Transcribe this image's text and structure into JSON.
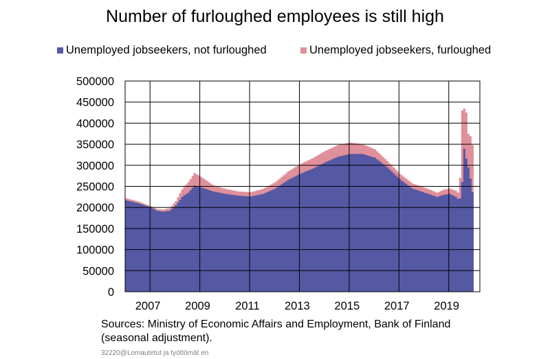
{
  "chart_data": {
    "type": "area",
    "stacked": true,
    "title": "Number of furloughed employees is still high",
    "xlabel": "",
    "ylabel": "",
    "ylim": [
      0,
      500000
    ],
    "yticks": [
      "500000",
      "450000",
      "400000",
      "350000",
      "300000",
      "250000",
      "200000",
      "150000",
      "100000",
      "50000",
      "0"
    ],
    "xlim": [
      2006.5,
      2020.75
    ],
    "xticks": [
      {
        "label": "2007",
        "x": 2007
      },
      {
        "label": "2009",
        "x": 2009
      },
      {
        "label": "2011",
        "x": 2011
      },
      {
        "label": "2013",
        "x": 2013
      },
      {
        "label": "2015",
        "x": 2015
      },
      {
        "label": "2017",
        "x": 2017
      },
      {
        "label": "2019",
        "x": 2019
      }
    ],
    "grid": true,
    "legend_position": "top",
    "series": [
      {
        "name": "Unemployed jobseekers, not furloughed",
        "color": "#5558a3",
        "points": [
          [
            2006.5,
            217000
          ],
          [
            2007.0,
            210000
          ],
          [
            2007.5,
            200000
          ],
          [
            2007.75,
            192000
          ],
          [
            2008.0,
            190000
          ],
          [
            2008.25,
            192000
          ],
          [
            2008.5,
            205000
          ],
          [
            2008.75,
            225000
          ],
          [
            2009.0,
            235000
          ],
          [
            2009.25,
            252000
          ],
          [
            2009.5,
            248000
          ],
          [
            2009.75,
            243000
          ],
          [
            2010.0,
            238000
          ],
          [
            2010.5,
            232000
          ],
          [
            2011.0,
            228000
          ],
          [
            2011.5,
            226000
          ],
          [
            2012.0,
            232000
          ],
          [
            2012.5,
            245000
          ],
          [
            2013.0,
            265000
          ],
          [
            2013.5,
            280000
          ],
          [
            2014.0,
            292000
          ],
          [
            2014.5,
            307000
          ],
          [
            2015.0,
            320000
          ],
          [
            2015.5,
            327000
          ],
          [
            2016.0,
            327000
          ],
          [
            2016.5,
            318000
          ],
          [
            2017.0,
            295000
          ],
          [
            2017.5,
            267000
          ],
          [
            2018.0,
            245000
          ],
          [
            2018.5,
            235000
          ],
          [
            2019.0,
            225000
          ],
          [
            2019.25,
            230000
          ],
          [
            2019.5,
            232000
          ],
          [
            2019.75,
            225000
          ],
          [
            2019.875,
            218000
          ],
          [
            2019.95,
            225000
          ],
          [
            2020.0,
            260000
          ],
          [
            2020.08,
            340000
          ],
          [
            2020.17,
            315000
          ],
          [
            2020.25,
            295000
          ],
          [
            2020.33,
            270000
          ],
          [
            2020.42,
            235000
          ],
          [
            2020.5,
            235000
          ]
        ]
      },
      {
        "name": "Unemployed jobseekers, furloughed",
        "color": "#e0909a",
        "points": [
          [
            2006.5,
            5000
          ],
          [
            2007.0,
            4000
          ],
          [
            2007.5,
            3000
          ],
          [
            2007.75,
            4000
          ],
          [
            2008.0,
            5000
          ],
          [
            2008.25,
            6000
          ],
          [
            2008.5,
            10000
          ],
          [
            2008.75,
            18000
          ],
          [
            2009.0,
            25000
          ],
          [
            2009.25,
            30000
          ],
          [
            2009.5,
            25000
          ],
          [
            2009.75,
            20000
          ],
          [
            2010.0,
            15000
          ],
          [
            2010.5,
            12000
          ],
          [
            2011.0,
            10000
          ],
          [
            2011.5,
            10000
          ],
          [
            2012.0,
            12000
          ],
          [
            2012.5,
            15000
          ],
          [
            2013.0,
            20000
          ],
          [
            2013.5,
            23000
          ],
          [
            2014.0,
            25000
          ],
          [
            2014.5,
            27000
          ],
          [
            2015.0,
            28000
          ],
          [
            2015.5,
            27000
          ],
          [
            2016.0,
            23000
          ],
          [
            2016.5,
            20000
          ],
          [
            2017.0,
            15000
          ],
          [
            2017.5,
            13000
          ],
          [
            2018.0,
            12000
          ],
          [
            2018.5,
            12000
          ],
          [
            2019.0,
            10000
          ],
          [
            2019.25,
            12000
          ],
          [
            2019.5,
            13000
          ],
          [
            2019.75,
            15000
          ],
          [
            2019.875,
            15000
          ],
          [
            2019.95,
            75000
          ],
          [
            2020.0,
            170000
          ],
          [
            2020.08,
            95000
          ],
          [
            2020.17,
            110000
          ],
          [
            2020.25,
            80000
          ],
          [
            2020.33,
            100000
          ],
          [
            2020.42,
            112000
          ],
          [
            2020.5,
            112000
          ]
        ]
      }
    ]
  },
  "source_line1": "Sources: Ministry of Economic Affairs and Employment, Bank of Finland",
  "source_line2": "(seasonal adjustment).",
  "footnote": "32220@Lomautetut  ja työttömät  en"
}
